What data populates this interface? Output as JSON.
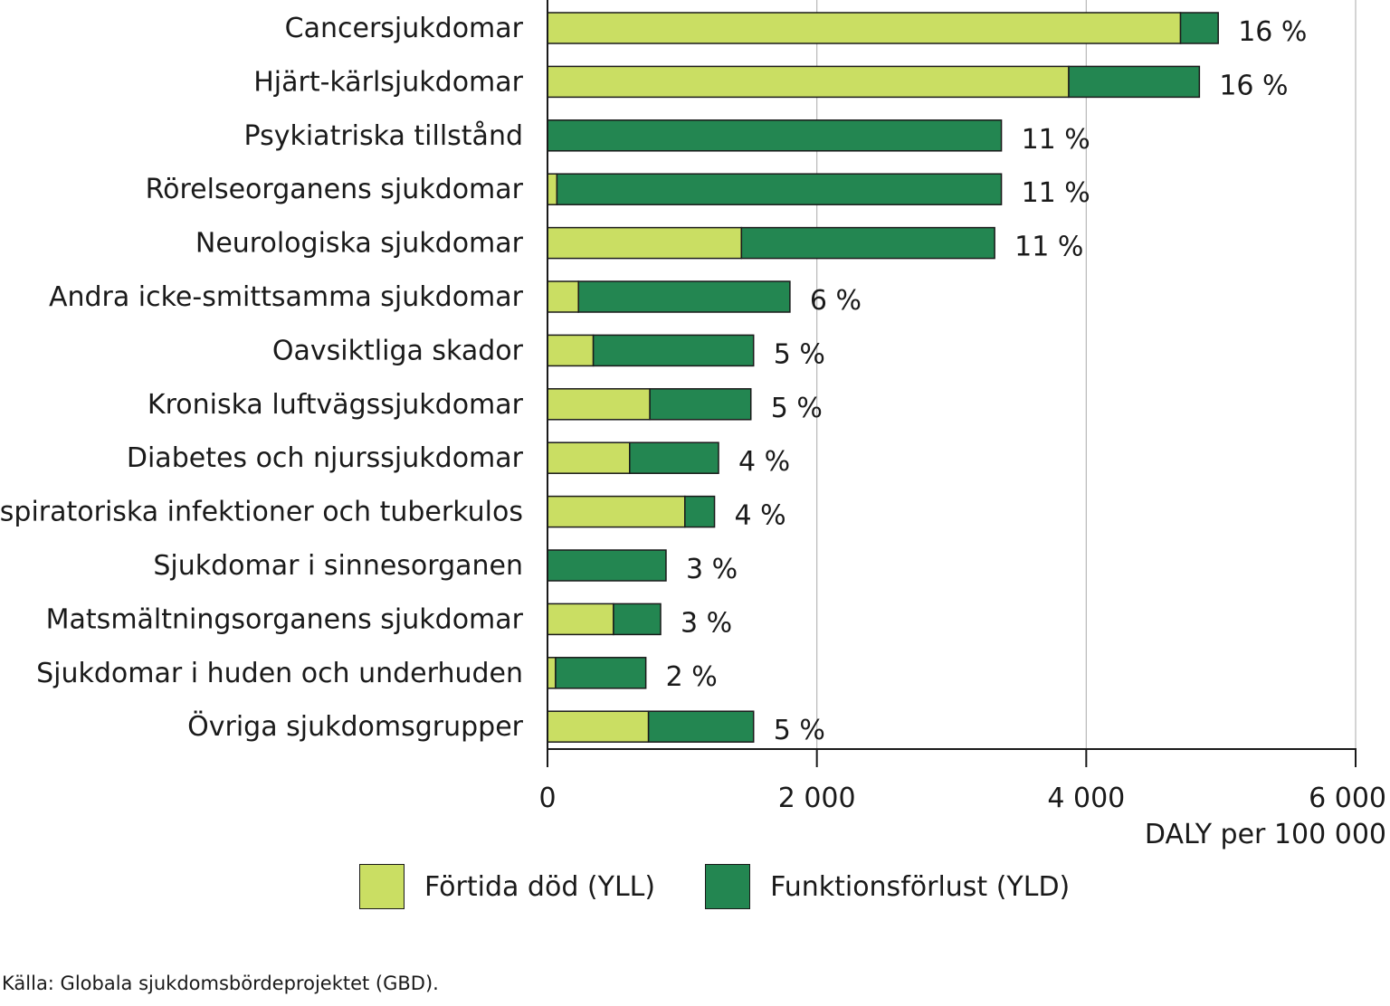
{
  "chart_data": {
    "type": "bar",
    "orientation": "horizontal",
    "stacked": true,
    "categories": [
      "Cancersjukdomar",
      "Hjärt-kärlsjukdomar",
      "Psykiatriska tillstånd",
      "Rörelseorganens sjukdomar",
      "Neurologiska sjukdomar",
      "Andra icke-smittsamma sjukdomar",
      "Oavsiktliga skador",
      "Kroniska luftvägssjukdomar",
      "Diabetes och njurssjukdomar",
      "Respiratoriska infektioner och tuberkulos",
      "Sjukdomar i sinnesorganen",
      "Matsmältningsorganens sjukdomar",
      "Sjukdomar i huden och underhuden",
      "Övriga sjukdomsgrupper"
    ],
    "series": [
      {
        "name": "Förtida död (YLL)",
        "color": "#cade63",
        "values": [
          4700,
          3870,
          0,
          70,
          1440,
          230,
          340,
          760,
          610,
          1020,
          0,
          490,
          60,
          750
        ]
      },
      {
        "name": "Funktionsförlust (YLD)",
        "color": "#238651",
        "values": [
          280,
          970,
          3370,
          3300,
          1880,
          1570,
          1190,
          750,
          660,
          220,
          880,
          350,
          670,
          780
        ]
      }
    ],
    "percent_labels": [
      "16 %",
      "16 %",
      "11 %",
      "11 %",
      "11 %",
      "6 %",
      "5 %",
      "5 %",
      "4 %",
      "4 %",
      "3 %",
      "3 %",
      "2 %",
      "5 %"
    ],
    "xlim": [
      0,
      6000
    ],
    "xticks": [
      0,
      2000,
      4000,
      6000
    ],
    "xtick_labels": [
      "0",
      "2 000",
      "4 000",
      "6 000"
    ],
    "xlabel": "DALY per 100 000",
    "ylabel": "",
    "grid": true,
    "legend_position": "bottom"
  },
  "source": "Källa: Globala sjukdomsbördeprojektet (GBD)."
}
